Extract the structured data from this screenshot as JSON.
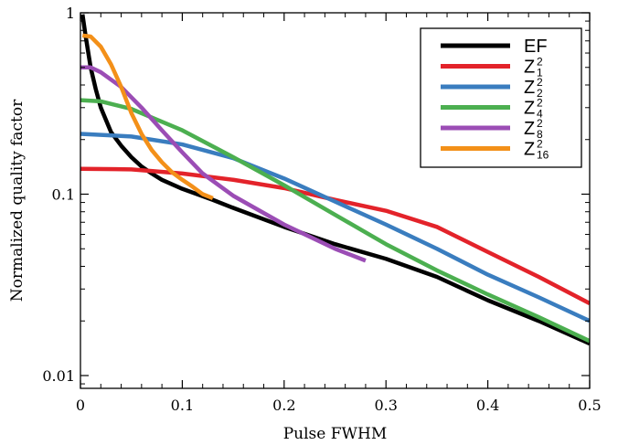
{
  "chart_data": {
    "type": "line",
    "title": "",
    "xlabel": "Pulse FWHM",
    "ylabel": "Normalized quality factor",
    "xlim": [
      0,
      0.5
    ],
    "ylim": [
      0.0085,
      1
    ],
    "yscale": "log",
    "grid": false,
    "legend_position": "top-right",
    "x_ticks": [
      {
        "value": 0,
        "label": "0"
      },
      {
        "value": 0.1,
        "label": "0.1"
      },
      {
        "value": 0.2,
        "label": "0.2"
      },
      {
        "value": 0.3,
        "label": "0.3"
      },
      {
        "value": 0.4,
        "label": "0.4"
      },
      {
        "value": 0.5,
        "label": "0.5"
      }
    ],
    "y_ticks": [
      {
        "value": 1,
        "label": "1"
      },
      {
        "value": 0.1,
        "label": "0.1"
      },
      {
        "value": 0.01,
        "label": "0.01"
      }
    ],
    "series": [
      {
        "name": "EF",
        "base": "EF",
        "sup": "",
        "sub": "",
        "color": "#000000",
        "points": [
          [
            0.002,
            0.98
          ],
          [
            0.005,
            0.75
          ],
          [
            0.01,
            0.5
          ],
          [
            0.015,
            0.38
          ],
          [
            0.02,
            0.3
          ],
          [
            0.03,
            0.22
          ],
          [
            0.04,
            0.185
          ],
          [
            0.05,
            0.16
          ],
          [
            0.06,
            0.142
          ],
          [
            0.07,
            0.13
          ],
          [
            0.08,
            0.12
          ],
          [
            0.1,
            0.107
          ],
          [
            0.13,
            0.093
          ],
          [
            0.15,
            0.084
          ],
          [
            0.2,
            0.066
          ],
          [
            0.25,
            0.053
          ],
          [
            0.3,
            0.044
          ],
          [
            0.35,
            0.035
          ],
          [
            0.4,
            0.026
          ],
          [
            0.45,
            0.02
          ],
          [
            0.5,
            0.015
          ]
        ]
      },
      {
        "name": "Z1^2",
        "base": "Z",
        "sup": "2",
        "sub": "1",
        "color": "#e3232a",
        "points": [
          [
            0,
            0.138
          ],
          [
            0.05,
            0.137
          ],
          [
            0.1,
            0.13
          ],
          [
            0.15,
            0.12
          ],
          [
            0.2,
            0.108
          ],
          [
            0.25,
            0.093
          ],
          [
            0.3,
            0.081
          ],
          [
            0.35,
            0.066
          ],
          [
            0.4,
            0.048
          ],
          [
            0.45,
            0.035
          ],
          [
            0.5,
            0.025
          ]
        ]
      },
      {
        "name": "Z2^2",
        "base": "Z",
        "sup": "2",
        "sub": "2",
        "color": "#3a7dbf",
        "points": [
          [
            0,
            0.215
          ],
          [
            0.05,
            0.208
          ],
          [
            0.1,
            0.188
          ],
          [
            0.15,
            0.158
          ],
          [
            0.2,
            0.122
          ],
          [
            0.25,
            0.091
          ],
          [
            0.3,
            0.068
          ],
          [
            0.35,
            0.05
          ],
          [
            0.4,
            0.036
          ],
          [
            0.45,
            0.027
          ],
          [
            0.5,
            0.02
          ]
        ]
      },
      {
        "name": "Z4^2",
        "base": "Z",
        "sup": "2",
        "sub": "4",
        "color": "#4caf50",
        "points": [
          [
            0,
            0.33
          ],
          [
            0.02,
            0.325
          ],
          [
            0.05,
            0.295
          ],
          [
            0.1,
            0.225
          ],
          [
            0.15,
            0.16
          ],
          [
            0.2,
            0.112
          ],
          [
            0.25,
            0.077
          ],
          [
            0.3,
            0.053
          ],
          [
            0.35,
            0.038
          ],
          [
            0.4,
            0.028
          ],
          [
            0.45,
            0.021
          ],
          [
            0.5,
            0.0155
          ]
        ]
      },
      {
        "name": "Z8^2",
        "base": "Z",
        "sup": "2",
        "sub": "8",
        "color": "#9b4db5",
        "points": [
          [
            0,
            0.5
          ],
          [
            0.01,
            0.5
          ],
          [
            0.02,
            0.47
          ],
          [
            0.04,
            0.39
          ],
          [
            0.06,
            0.3
          ],
          [
            0.08,
            0.225
          ],
          [
            0.1,
            0.17
          ],
          [
            0.12,
            0.13
          ],
          [
            0.15,
            0.098
          ],
          [
            0.2,
            0.068
          ],
          [
            0.25,
            0.05
          ],
          [
            0.28,
            0.043
          ]
        ]
      },
      {
        "name": "Z16^2",
        "base": "Z",
        "sup": "2",
        "sub": "16",
        "color": "#f39019",
        "points": [
          [
            0.002,
            0.75
          ],
          [
            0.01,
            0.74
          ],
          [
            0.02,
            0.65
          ],
          [
            0.03,
            0.52
          ],
          [
            0.04,
            0.39
          ],
          [
            0.05,
            0.28
          ],
          [
            0.06,
            0.215
          ],
          [
            0.07,
            0.175
          ],
          [
            0.08,
            0.15
          ],
          [
            0.09,
            0.132
          ],
          [
            0.1,
            0.12
          ],
          [
            0.11,
            0.11
          ],
          [
            0.12,
            0.1
          ],
          [
            0.13,
            0.095
          ]
        ]
      }
    ]
  }
}
